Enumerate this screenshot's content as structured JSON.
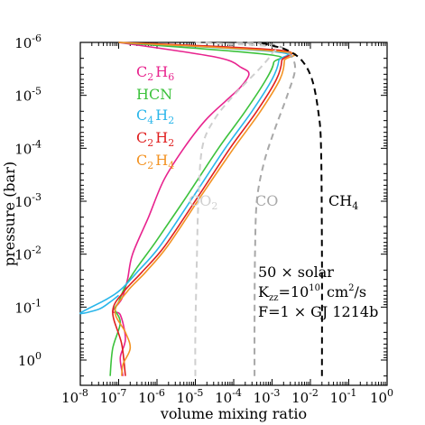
{
  "chart_data": {
    "type": "line",
    "xlabel": "volume mixing ratio",
    "ylabel": "pressure (bar)",
    "x_scale": "log",
    "y_scale": "log",
    "y_inverted": true,
    "xlim": [
      1e-08,
      1
    ],
    "ylim": [
      3,
      1e-06
    ],
    "x_tick_labels": [
      {
        "value": 1e-08,
        "base": "10",
        "exp": "-8"
      },
      {
        "value": 1e-07,
        "base": "10",
        "exp": "-7"
      },
      {
        "value": 1e-06,
        "base": "10",
        "exp": "-6"
      },
      {
        "value": 1e-05,
        "base": "10",
        "exp": "-5"
      },
      {
        "value": 0.0001,
        "base": "10",
        "exp": "-4"
      },
      {
        "value": 0.001,
        "base": "10",
        "exp": "-3"
      },
      {
        "value": 0.01,
        "base": "10",
        "exp": "-2"
      },
      {
        "value": 0.1,
        "base": "10",
        "exp": "-1"
      },
      {
        "value": 1,
        "base": "10",
        "exp": "0"
      }
    ],
    "y_tick_labels": [
      {
        "value": 1e-06,
        "base": "10",
        "exp": "-6"
      },
      {
        "value": 1e-05,
        "base": "10",
        "exp": "-5"
      },
      {
        "value": 0.0001,
        "base": "10",
        "exp": "-4"
      },
      {
        "value": 0.001,
        "base": "10",
        "exp": "-3"
      },
      {
        "value": 0.01,
        "base": "10",
        "exp": "-2"
      },
      {
        "value": 0.1,
        "base": "10",
        "exp": "-1"
      },
      {
        "value": 1,
        "base": "10",
        "exp": "0"
      }
    ],
    "series": [
      {
        "key": "c2h6",
        "label_main": "C",
        "label_sub1": "2",
        "label_mid": "H",
        "label_sub2": "6",
        "color": "#e8238e",
        "style": "solid",
        "points": [
          [
            1e-07,
            1e-06
          ],
          [
            3.5e-05,
            1.9e-06
          ],
          [
            0.00016,
            3e-06
          ],
          [
            0.00025,
            4e-06
          ],
          [
            0.00015,
            7e-06
          ],
          [
            6e-05,
            1.3e-05
          ],
          [
            1.8e-05,
            3e-05
          ],
          [
            5e-06,
            0.0001
          ],
          [
            1.5e-06,
            0.0004
          ],
          [
            6e-07,
            0.002
          ],
          [
            2.3e-07,
            0.01
          ],
          [
            1.7e-07,
            0.03
          ],
          [
            1.2e-07,
            0.07
          ],
          [
            7e-08,
            0.12
          ],
          [
            1.1e-07,
            0.14
          ],
          [
            1.5e-07,
            0.4
          ],
          [
            1.1e-07,
            0.9
          ],
          [
            1.3e-07,
            2.0
          ]
        ]
      },
      {
        "key": "hcn",
        "label_main": "HCN",
        "color": "#3cc23c",
        "style": "solid",
        "points": [
          [
            1e-07,
            1e-06
          ],
          [
            0.0008,
            1.7e-06
          ],
          [
            0.0011,
            2.4e-06
          ],
          [
            0.0007,
            5e-06
          ],
          [
            0.0002,
            2e-05
          ],
          [
            4e-05,
            0.0001
          ],
          [
            6e-06,
            0.0008
          ],
          [
            9e-07,
            0.006
          ],
          [
            3e-07,
            0.018
          ],
          [
            1.5e-07,
            0.04
          ],
          [
            1e-07,
            0.08
          ],
          [
            8e-08,
            0.11
          ],
          [
            1.1e-07,
            0.2
          ],
          [
            7e-08,
            0.6
          ],
          [
            6e-08,
            2.0
          ]
        ]
      },
      {
        "key": "c4h2",
        "label_main": "C",
        "label_sub1": "4",
        "label_mid": "H",
        "label_sub2": "2",
        "color": "#2ab6ea",
        "style": "solid",
        "points": [
          [
            1e-07,
            1e-06
          ],
          [
            0.0012,
            1.5e-06
          ],
          [
            0.0015,
            2.2e-06
          ],
          [
            0.001,
            5e-06
          ],
          [
            0.0003,
            2e-05
          ],
          [
            6e-05,
            0.0001
          ],
          [
            9e-06,
            0.0008
          ],
          [
            1.2e-06,
            0.007
          ],
          [
            3e-07,
            0.022
          ],
          [
            1.2e-07,
            0.045
          ],
          [
            5e-08,
            0.07
          ],
          [
            1e-08,
            0.13
          ],
          [
            3e-08,
            0.11
          ],
          [
            6e-08,
            0.08
          ],
          [
            1e-07,
            0.06
          ]
        ]
      },
      {
        "key": "c2h2",
        "label_main": "C",
        "label_sub1": "2",
        "label_mid": "H",
        "label_sub2": "2",
        "color": "#e02020",
        "style": "solid",
        "points": [
          [
            1e-07,
            1e-06
          ],
          [
            0.0015,
            1.4e-06
          ],
          [
            0.0018,
            2.2e-06
          ],
          [
            0.0013,
            5e-06
          ],
          [
            0.0004,
            2e-05
          ],
          [
            8e-05,
            0.0001
          ],
          [
            1.2e-05,
            0.0008
          ],
          [
            1.6e-06,
            0.007
          ],
          [
            4e-07,
            0.022
          ],
          [
            1.4e-07,
            0.05
          ],
          [
            7e-08,
            0.12
          ],
          [
            1.2e-07,
            0.5
          ],
          [
            1.5e-07,
            2.0
          ]
        ]
      },
      {
        "key": "c2h4",
        "label_main": "C",
        "label_sub1": "2",
        "label_mid": "H",
        "label_sub2": "4",
        "color": "#f39323",
        "style": "solid",
        "points": [
          [
            1e-07,
            1e-06
          ],
          [
            0.0019,
            1.5e-06
          ],
          [
            0.0021,
            2.2e-06
          ],
          [
            0.0016,
            5e-06
          ],
          [
            0.0005,
            2e-05
          ],
          [
            0.0001,
            0.0001
          ],
          [
            1.4e-05,
            0.0008
          ],
          [
            1.9e-06,
            0.007
          ],
          [
            5e-07,
            0.022
          ],
          [
            1.7e-07,
            0.05
          ],
          [
            8e-08,
            0.12
          ],
          [
            1.5e-07,
            0.3
          ],
          [
            2e-07,
            0.6
          ],
          [
            1.3e-07,
            1.2
          ],
          [
            1.2e-07,
            2.0
          ]
        ]
      },
      {
        "key": "co2",
        "label_main": "CO",
        "label_sub1": "2",
        "color": "#cfcfcf",
        "style": "dashed",
        "points": [
          [
            1e-05,
            2.0
          ],
          [
            1e-05,
            0.3
          ],
          [
            1.1e-05,
            0.01
          ],
          [
            1.2e-05,
            0.001
          ],
          [
            1.5e-05,
            0.0001
          ],
          [
            3e-05,
            3e-05
          ],
          [
            0.0001,
            1e-05
          ],
          [
            0.0005,
            3e-06
          ],
          [
            0.001,
            1.6e-06
          ],
          [
            0.001,
            1.2e-06
          ],
          [
            1e-05,
            1e-06
          ]
        ]
      },
      {
        "key": "co",
        "label_main": "CO",
        "color": "#a8a8a8",
        "style": "dashed",
        "points": [
          [
            0.00035,
            2.0
          ],
          [
            0.00035,
            0.2
          ],
          [
            0.00036,
            0.01
          ],
          [
            0.0004,
            0.001
          ],
          [
            0.0006,
            0.0002
          ],
          [
            0.0011,
            5e-05
          ],
          [
            0.0025,
            1e-05
          ],
          [
            0.004,
            3e-06
          ],
          [
            0.0025,
            1.5e-06
          ],
          [
            0.001,
            1.1e-06
          ],
          [
            0.0001,
            1e-06
          ]
        ]
      },
      {
        "key": "ch4",
        "label_main": "CH",
        "label_sub1": "4",
        "color": "#000000",
        "style": "dashed",
        "points": [
          [
            0.02,
            2.0
          ],
          [
            0.02,
            0.01
          ],
          [
            0.019,
            0.0001
          ],
          [
            0.016,
            2e-05
          ],
          [
            0.011,
            5e-06
          ],
          [
            0.006,
            2.2e-06
          ],
          [
            0.0025,
            1.4e-06
          ],
          [
            0.0008,
            1.1e-06
          ],
          [
            0.0005,
            1e-06
          ]
        ]
      }
    ],
    "annotations": {
      "line1_num": "50",
      "line1_times": "×",
      "line1_text": "solar",
      "line2_K": "K",
      "line2_sub": "zz",
      "line2_eq": "=10",
      "line2_exp": "10",
      "line2_unit": "cm",
      "line2_unit_exp": "2",
      "line2_unit_tail": "/s",
      "line3_text": "F=1",
      "line3_times": "×",
      "line3_tail": "GJ 1214b"
    }
  }
}
